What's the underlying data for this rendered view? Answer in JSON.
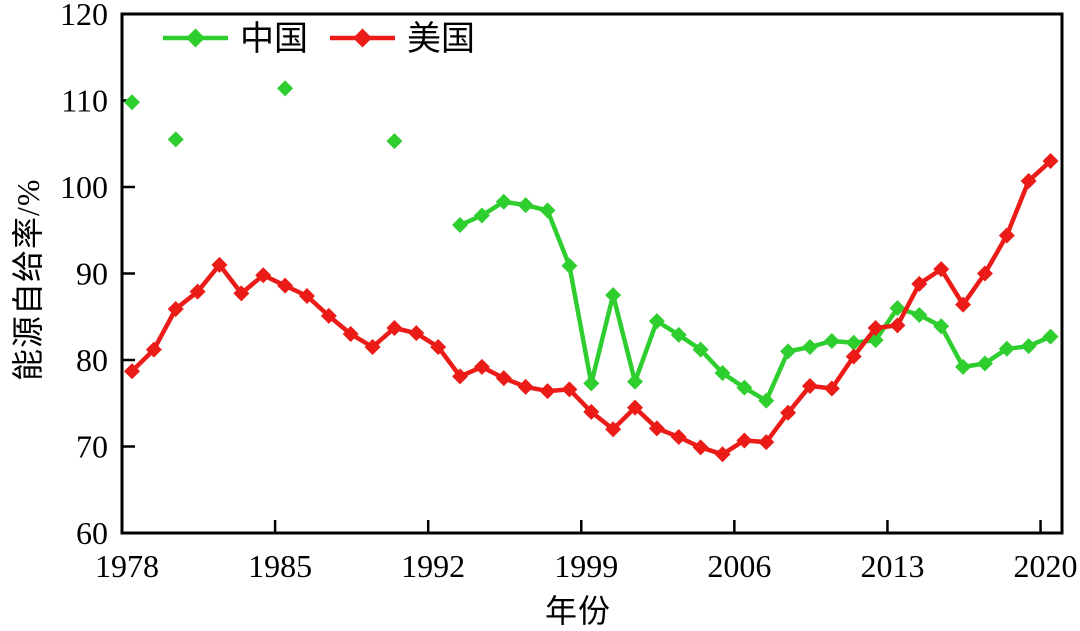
{
  "chart_data": {
    "type": "line",
    "title": "",
    "xlabel": "年份",
    "ylabel": "能源自给率/%",
    "xlim": [
      1978,
      2021
    ],
    "ylim": [
      60,
      120
    ],
    "x_ticks": [
      1978,
      1985,
      1992,
      1999,
      2006,
      2013,
      2020
    ],
    "y_ticks": [
      60,
      70,
      80,
      90,
      100,
      110,
      120
    ],
    "grid": false,
    "legend": {
      "position": "top-left",
      "orientation": "horizontal"
    },
    "series": [
      {
        "name": "中国",
        "slug": "china",
        "color": "#2fce2f",
        "marker": "diamond",
        "segments": [
          {
            "x": [
              1978
            ],
            "y": [
              109.8
            ]
          },
          {
            "x": [
              1980
            ],
            "y": [
              105.5
            ]
          },
          {
            "x": [
              1985
            ],
            "y": [
              111.4
            ]
          },
          {
            "x": [
              1990
            ],
            "y": [
              105.3
            ]
          },
          {
            "x": [
              1993,
              1994,
              1995,
              1996,
              1997,
              1998,
              1999,
              2000,
              2001,
              2002,
              2003,
              2004,
              2005,
              2006,
              2007,
              2008,
              2009,
              2010,
              2011,
              2012,
              2013,
              2014,
              2015,
              2016,
              2017,
              2018,
              2019,
              2020
            ],
            "y": [
              95.6,
              96.7,
              98.3,
              97.9,
              97.3,
              90.9,
              77.3,
              87.5,
              77.5,
              84.5,
              82.9,
              81.2,
              78.5,
              76.8,
              75.3,
              81.0,
              81.5,
              82.2,
              82.0,
              82.3,
              86.0,
              85.2,
              83.9,
              79.2,
              79.6,
              81.3,
              81.6,
              82.7
            ]
          }
        ]
      },
      {
        "name": "美国",
        "slug": "usa",
        "color": "#eb1c17",
        "marker": "diamond",
        "segments": [
          {
            "x": [
              1978,
              1979,
              1980,
              1981,
              1982,
              1983,
              1984,
              1985,
              1986,
              1987,
              1988,
              1989,
              1990,
              1991,
              1992,
              1993,
              1994,
              1995,
              1996,
              1997,
              1998,
              1999,
              2000,
              2001,
              2002,
              2003,
              2004,
              2005,
              2006,
              2007,
              2008,
              2009,
              2010,
              2011,
              2012,
              2013,
              2014,
              2015,
              2016,
              2017,
              2018,
              2019,
              2020
            ],
            "y": [
              78.7,
              81.2,
              85.9,
              87.9,
              91.0,
              87.7,
              89.8,
              88.6,
              87.4,
              85.1,
              83.0,
              81.5,
              83.7,
              83.1,
              81.5,
              78.1,
              79.2,
              77.9,
              76.9,
              76.4,
              76.6,
              74.0,
              72.0,
              74.5,
              72.1,
              71.1,
              69.9,
              69.1,
              70.7,
              70.5,
              73.9,
              77.0,
              76.7,
              80.4,
              83.7,
              84.0,
              88.8,
              90.5,
              86.4,
              90.0,
              94.4,
              100.7,
              103.0
            ]
          }
        ]
      }
    ]
  }
}
